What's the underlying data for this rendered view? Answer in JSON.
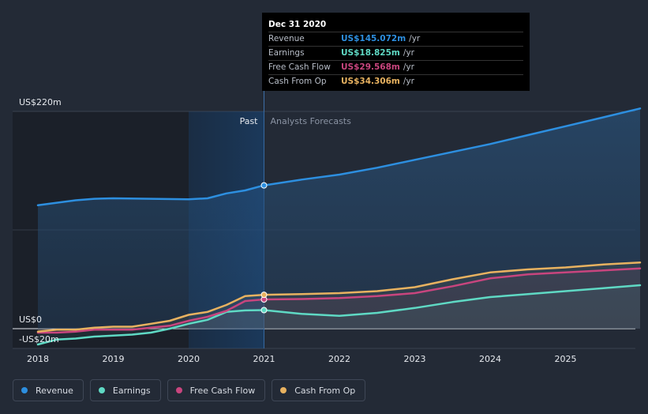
{
  "chart_data": {
    "type": "area",
    "title": "",
    "xlabel": "",
    "ylabel": "",
    "ylim": [
      -20,
      220
    ],
    "xlim": [
      2018,
      2025.99
    ],
    "y_tick_labels": [
      "US$220m",
      "US$0",
      "-US$20m"
    ],
    "x_ticks": [
      2018,
      2019,
      2020,
      2021,
      2022,
      2023,
      2024,
      2025
    ],
    "x_tick_labels": [
      "2018",
      "2019",
      "2020",
      "2021",
      "2022",
      "2023",
      "2024",
      "2025"
    ],
    "past_label": "Past",
    "forecast_label": "Analysts Forecasts",
    "divider_x": 2021.0,
    "past_shade_start": 2020.0,
    "series": [
      {
        "name": "Revenue",
        "color": "#2d8fe0",
        "x": [
          2018.0,
          2018.5,
          2018.75,
          2019.0,
          2019.5,
          2020.0,
          2020.25,
          2020.5,
          2020.75,
          2021.0,
          2021.5,
          2022.0,
          2022.5,
          2023.0,
          2023.5,
          2024.0,
          2024.5,
          2025.0,
          2025.5,
          2025.99
        ],
        "values": [
          125,
          130,
          131.5,
          132,
          131.5,
          131,
          132,
          137,
          140,
          145.1,
          151,
          156,
          163,
          171,
          179,
          187,
          196,
          205,
          214,
          223
        ]
      },
      {
        "name": "Earnings",
        "color": "#5fd9c4",
        "x": [
          2018.0,
          2018.25,
          2018.5,
          2018.75,
          2019.0,
          2019.25,
          2019.5,
          2019.75,
          2020.0,
          2020.25,
          2020.5,
          2020.75,
          2021.0,
          2021.5,
          2022.0,
          2022.5,
          2023.0,
          2023.5,
          2024.0,
          2024.5,
          2025.0,
          2025.5,
          2025.99
        ],
        "values": [
          -16,
          -11,
          -10,
          -8,
          -7,
          -6,
          -4,
          0,
          5,
          9,
          17,
          18.5,
          18.8,
          15,
          13,
          16,
          21,
          27,
          32,
          35,
          38,
          41,
          44
        ]
      },
      {
        "name": "Free Cash Flow",
        "color": "#c8457e",
        "x": [
          2018.0,
          2018.25,
          2018.5,
          2018.75,
          2019.0,
          2019.25,
          2019.5,
          2019.75,
          2020.0,
          2020.25,
          2020.5,
          2020.75,
          2021.0,
          2021.5,
          2022.0,
          2022.5,
          2023.0,
          2023.5,
          2024.0,
          2024.5,
          2025.0,
          2025.5,
          2025.99
        ],
        "values": [
          -4,
          -4,
          -3,
          -1,
          -1,
          -1,
          1,
          3,
          8,
          12,
          18,
          28,
          29.6,
          30,
          31,
          33,
          36,
          43,
          51,
          55,
          57,
          59,
          61
        ]
      },
      {
        "name": "Cash From Op",
        "color": "#e8b260",
        "x": [
          2018.0,
          2018.25,
          2018.5,
          2018.75,
          2019.0,
          2019.25,
          2019.5,
          2019.75,
          2020.0,
          2020.25,
          2020.5,
          2020.75,
          2021.0,
          2021.5,
          2022.0,
          2022.5,
          2023.0,
          2023.5,
          2024.0,
          2024.5,
          2025.0,
          2025.5,
          2025.99
        ],
        "values": [
          -3,
          -1,
          -1,
          1,
          2,
          2,
          5,
          8,
          14,
          17,
          24,
          33,
          34.3,
          35,
          36,
          38,
          42,
          50,
          57,
          60,
          62,
          65,
          67
        ]
      }
    ]
  },
  "tooltip": {
    "date": "Dec 31 2020",
    "rows": [
      {
        "label": "Revenue",
        "value": "US$145.072m",
        "unit": "/yr",
        "color": "#2d8fe0"
      },
      {
        "label": "Earnings",
        "value": "US$18.825m",
        "unit": "/yr",
        "color": "#5fd9c4"
      },
      {
        "label": "Free Cash Flow",
        "value": "US$29.568m",
        "unit": "/yr",
        "color": "#c8457e"
      },
      {
        "label": "Cash From Op",
        "value": "US$34.306m",
        "unit": "/yr",
        "color": "#e8b260"
      }
    ]
  },
  "legend": [
    {
      "label": "Revenue",
      "color": "#2d8fe0"
    },
    {
      "label": "Earnings",
      "color": "#5fd9c4"
    },
    {
      "label": "Free Cash Flow",
      "color": "#c8457e"
    },
    {
      "label": "Cash From Op",
      "color": "#e8b260"
    }
  ]
}
